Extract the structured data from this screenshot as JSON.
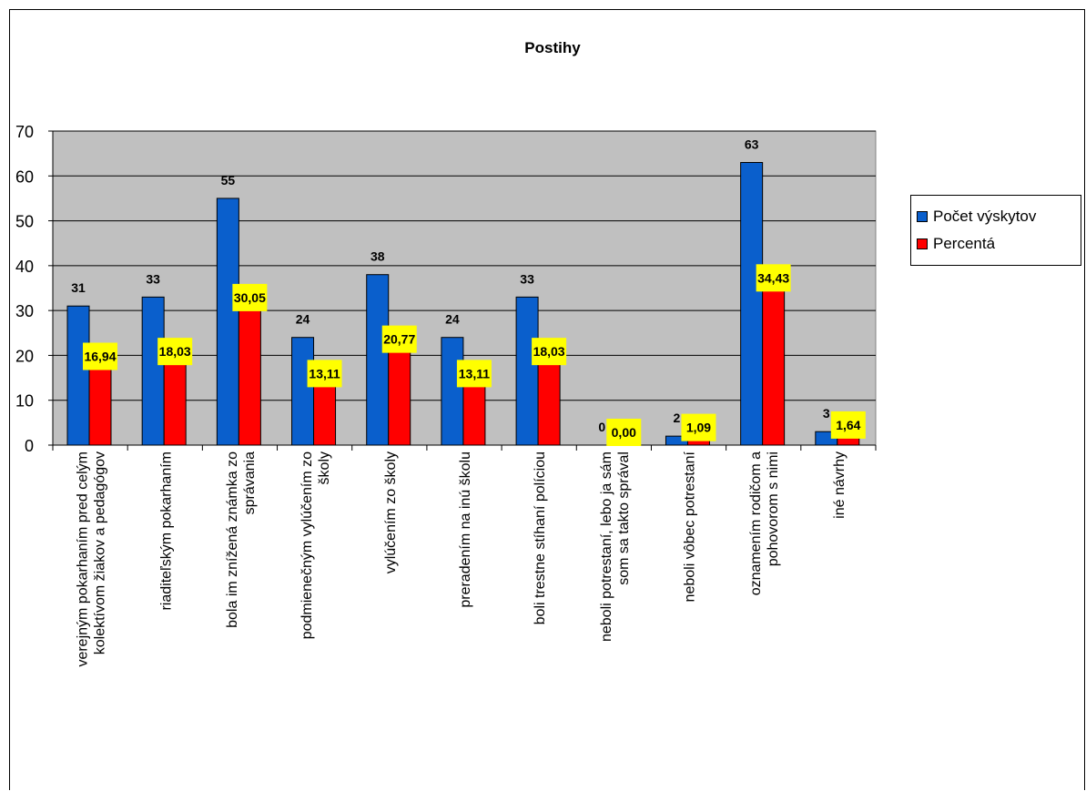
{
  "chart_data": {
    "type": "bar",
    "title": "Postihy",
    "ylim": [
      0,
      70
    ],
    "yticks": [
      0,
      10,
      20,
      30,
      40,
      50,
      60,
      70
    ],
    "grid": true,
    "legend_position": "right",
    "categories": [
      [
        "verejným pokarhaním pred celým",
        "kolektívom žiakov a pedagógov"
      ],
      [
        "riaditeľským pokarhaním"
      ],
      [
        "bola im znížená známka zo",
        "správania"
      ],
      [
        "podmienečným vylúčením zo",
        "školy"
      ],
      [
        "vylúčením zo školy"
      ],
      [
        "preradením na inú školu"
      ],
      [
        "boli trestne stíhaní políciou"
      ],
      [
        "neboli potrestaní, lebo ja sám",
        "som sa takto správal"
      ],
      [
        "neboli vôbec potrestaní"
      ],
      [
        "oznamením rodičom a",
        "pohovorom s nimi"
      ],
      [
        "iné návrhy"
      ]
    ],
    "series": [
      {
        "name": "Počet výskytov",
        "color": "#0a5fcc",
        "values": [
          31,
          33,
          55,
          24,
          38,
          24,
          33,
          0,
          2,
          63,
          3
        ],
        "labels": [
          "31",
          "33",
          "55",
          "24",
          "38",
          "24",
          "33",
          "0",
          "2",
          "63",
          "3"
        ]
      },
      {
        "name": "Percentá",
        "color": "#ff0000",
        "values": [
          16.94,
          18.03,
          30.05,
          13.11,
          20.77,
          13.11,
          18.03,
          0.0,
          1.09,
          34.43,
          1.64
        ],
        "labels": [
          "16,94",
          "18,03",
          "30,05",
          "13,11",
          "20,77",
          "13,11",
          "18,03",
          "0,00",
          "1,09",
          "34,43",
          "1,64"
        ]
      }
    ],
    "plot_background": "#c0c0c0",
    "label_highlight": "#ffff00"
  }
}
